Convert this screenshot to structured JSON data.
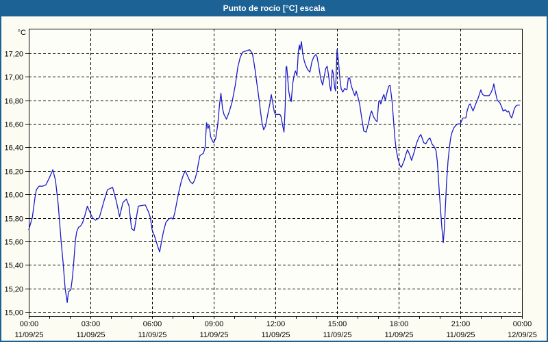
{
  "titlebar": {
    "title": "Punto de rocío [°C] escala"
  },
  "colors": {
    "titlebar_bg": "#1d6294",
    "window_border": "#1d6294",
    "background": "#fcfcf2",
    "plot_background": "#fefef8",
    "line": "#1a1aca",
    "grid": "#000000",
    "text": "#000000"
  },
  "chart_data": {
    "type": "line",
    "title": "Punto de rocío [°C] escala",
    "y_unit_label": "°C",
    "grid": true,
    "ylim": [
      14.97,
      17.44
    ],
    "x_range_hours": [
      0,
      24
    ],
    "y_ticks": [
      {
        "value": 15.0,
        "label": "15,00"
      },
      {
        "value": 15.2,
        "label": "15,20"
      },
      {
        "value": 15.4,
        "label": "15,40"
      },
      {
        "value": 15.6,
        "label": "15,60"
      },
      {
        "value": 15.8,
        "label": "15,80"
      },
      {
        "value": 16.0,
        "label": "16,00"
      },
      {
        "value": 16.2,
        "label": "16,20"
      },
      {
        "value": 16.4,
        "label": "16,40"
      },
      {
        "value": 16.6,
        "label": "16,60"
      },
      {
        "value": 16.8,
        "label": "16,80"
      },
      {
        "value": 17.0,
        "label": "17,00"
      },
      {
        "value": 17.2,
        "label": "17,20"
      }
    ],
    "x_ticks": [
      {
        "hour": 0,
        "time": "00:00",
        "date": "11/09/25"
      },
      {
        "hour": 3,
        "time": "03:00",
        "date": "11/09/25"
      },
      {
        "hour": 6,
        "time": "06:00",
        "date": "11/09/25"
      },
      {
        "hour": 9,
        "time": "09:00",
        "date": "11/09/25"
      },
      {
        "hour": 12,
        "time": "12:00",
        "date": "11/09/25"
      },
      {
        "hour": 15,
        "time": "15:00",
        "date": "11/09/25"
      },
      {
        "hour": 18,
        "time": "18:00",
        "date": "11/09/25"
      },
      {
        "hour": 21,
        "time": "21:00",
        "date": "11/09/25"
      },
      {
        "hour": 24,
        "time": "00:00",
        "date": "12/09/25"
      }
    ],
    "minor_x_tick_every_hours": 1,
    "series": [
      {
        "name": "Punto de rocío",
        "color": "#1a1aca",
        "points_hour_value": [
          [
            0,
            15.7
          ],
          [
            0.17,
            15.8
          ],
          [
            0.3,
            15.97
          ],
          [
            0.37,
            16.04
          ],
          [
            0.5,
            16.07
          ],
          [
            0.67,
            16.07
          ],
          [
            0.83,
            16.08
          ],
          [
            1.0,
            16.14
          ],
          [
            1.17,
            16.21
          ],
          [
            1.3,
            16.12
          ],
          [
            1.43,
            15.92
          ],
          [
            1.57,
            15.61
          ],
          [
            1.67,
            15.42
          ],
          [
            1.77,
            15.2
          ],
          [
            1.87,
            15.08
          ],
          [
            1.93,
            15.17
          ],
          [
            2.05,
            15.19
          ],
          [
            2.13,
            15.3
          ],
          [
            2.2,
            15.45
          ],
          [
            2.27,
            15.61
          ],
          [
            2.33,
            15.68
          ],
          [
            2.42,
            15.72
          ],
          [
            2.52,
            15.73
          ],
          [
            2.62,
            15.76
          ],
          [
            2.73,
            15.82
          ],
          [
            2.85,
            15.9
          ],
          [
            3.0,
            15.84
          ],
          [
            3.1,
            15.8
          ],
          [
            3.25,
            15.78
          ],
          [
            3.43,
            15.8
          ],
          [
            3.67,
            15.95
          ],
          [
            3.83,
            16.04
          ],
          [
            4.08,
            16.06
          ],
          [
            4.25,
            15.95
          ],
          [
            4.42,
            15.81
          ],
          [
            4.58,
            15.93
          ],
          [
            4.75,
            15.96
          ],
          [
            4.88,
            15.9
          ],
          [
            5.0,
            15.71
          ],
          [
            5.13,
            15.69
          ],
          [
            5.33,
            15.9
          ],
          [
            5.67,
            15.91
          ],
          [
            5.83,
            15.85
          ],
          [
            5.92,
            15.8
          ],
          [
            6.0,
            15.7
          ],
          [
            6.13,
            15.64
          ],
          [
            6.27,
            15.56
          ],
          [
            6.37,
            15.51
          ],
          [
            6.45,
            15.59
          ],
          [
            6.55,
            15.68
          ],
          [
            6.67,
            15.76
          ],
          [
            6.8,
            15.79
          ],
          [
            6.93,
            15.8
          ],
          [
            7.02,
            15.79
          ],
          [
            7.1,
            15.84
          ],
          [
            7.2,
            15.93
          ],
          [
            7.3,
            16.02
          ],
          [
            7.42,
            16.11
          ],
          [
            7.53,
            16.17
          ],
          [
            7.62,
            16.2
          ],
          [
            7.72,
            16.16
          ],
          [
            7.85,
            16.11
          ],
          [
            7.97,
            16.09
          ],
          [
            8.07,
            16.12
          ],
          [
            8.17,
            16.18
          ],
          [
            8.25,
            16.26
          ],
          [
            8.33,
            16.33
          ],
          [
            8.5,
            16.35
          ],
          [
            8.58,
            16.4
          ],
          [
            8.65,
            16.61
          ],
          [
            8.72,
            16.56
          ],
          [
            8.78,
            16.59
          ],
          [
            8.85,
            16.49
          ],
          [
            8.95,
            16.45
          ],
          [
            9.0,
            16.44
          ],
          [
            9.1,
            16.48
          ],
          [
            9.2,
            16.6
          ],
          [
            9.28,
            16.76
          ],
          [
            9.35,
            16.86
          ],
          [
            9.43,
            16.73
          ],
          [
            9.5,
            16.68
          ],
          [
            9.62,
            16.64
          ],
          [
            9.75,
            16.7
          ],
          [
            9.9,
            16.79
          ],
          [
            10.05,
            16.93
          ],
          [
            10.17,
            17.08
          ],
          [
            10.28,
            17.16
          ],
          [
            10.4,
            17.21
          ],
          [
            10.55,
            17.22
          ],
          [
            10.75,
            17.23
          ],
          [
            10.88,
            17.2
          ],
          [
            10.95,
            17.13
          ],
          [
            11.02,
            17.05
          ],
          [
            11.08,
            16.97
          ],
          [
            11.15,
            16.88
          ],
          [
            11.22,
            16.79
          ],
          [
            11.28,
            16.7
          ],
          [
            11.35,
            16.61
          ],
          [
            11.43,
            16.55
          ],
          [
            11.52,
            16.58
          ],
          [
            11.65,
            16.7
          ],
          [
            11.73,
            16.77
          ],
          [
            11.8,
            16.85
          ],
          [
            11.88,
            16.77
          ],
          [
            11.95,
            16.7
          ],
          [
            12.0,
            16.68
          ],
          [
            12.22,
            16.68
          ],
          [
            12.28,
            16.66
          ],
          [
            12.35,
            16.59
          ],
          [
            12.42,
            16.53
          ],
          [
            12.48,
            16.75
          ],
          [
            12.52,
            17.08
          ],
          [
            12.55,
            17.09
          ],
          [
            12.6,
            16.99
          ],
          [
            12.65,
            16.88
          ],
          [
            12.72,
            16.81
          ],
          [
            12.77,
            16.79
          ],
          [
            12.85,
            16.95
          ],
          [
            12.93,
            17.03
          ],
          [
            12.98,
            17.05
          ],
          [
            13.05,
            17.01
          ],
          [
            13.12,
            17.22
          ],
          [
            13.17,
            17.27
          ],
          [
            13.2,
            17.23
          ],
          [
            13.27,
            17.3
          ],
          [
            13.33,
            17.2
          ],
          [
            13.4,
            17.14
          ],
          [
            13.47,
            17.1
          ],
          [
            13.58,
            17.06
          ],
          [
            13.68,
            17.04
          ],
          [
            13.78,
            17.13
          ],
          [
            13.87,
            17.17
          ],
          [
            13.97,
            17.19
          ],
          [
            14.03,
            17.17
          ],
          [
            14.13,
            17.07
          ],
          [
            14.2,
            16.99
          ],
          [
            14.3,
            16.93
          ],
          [
            14.45,
            17.07
          ],
          [
            14.52,
            17.09
          ],
          [
            14.6,
            17.0
          ],
          [
            14.65,
            16.92
          ],
          [
            14.7,
            16.88
          ],
          [
            14.77,
            17.06
          ],
          [
            14.82,
            17.03
          ],
          [
            14.88,
            16.91
          ],
          [
            14.93,
            16.88
          ],
          [
            15.0,
            17.23
          ],
          [
            15.07,
            17.14
          ],
          [
            15.13,
            17.0
          ],
          [
            15.2,
            16.9
          ],
          [
            15.28,
            16.87
          ],
          [
            15.37,
            16.9
          ],
          [
            15.48,
            16.89
          ],
          [
            15.55,
            16.99
          ],
          [
            15.62,
            16.99
          ],
          [
            15.7,
            16.92
          ],
          [
            15.8,
            16.87
          ],
          [
            15.87,
            16.84
          ],
          [
            15.93,
            16.88
          ],
          [
            16.03,
            16.82
          ],
          [
            16.1,
            16.77
          ],
          [
            16.15,
            16.71
          ],
          [
            16.22,
            16.63
          ],
          [
            16.3,
            16.54
          ],
          [
            16.42,
            16.53
          ],
          [
            16.55,
            16.62
          ],
          [
            16.62,
            16.68
          ],
          [
            16.68,
            16.71
          ],
          [
            16.78,
            16.66
          ],
          [
            16.88,
            16.63
          ],
          [
            16.95,
            16.62
          ],
          [
            17.03,
            16.79
          ],
          [
            17.08,
            16.8
          ],
          [
            17.13,
            16.77
          ],
          [
            17.23,
            16.83
          ],
          [
            17.28,
            16.85
          ],
          [
            17.35,
            16.8
          ],
          [
            17.45,
            16.88
          ],
          [
            17.52,
            16.92
          ],
          [
            17.58,
            16.93
          ],
          [
            17.68,
            16.79
          ],
          [
            17.75,
            16.63
          ],
          [
            17.82,
            16.47
          ],
          [
            17.88,
            16.38
          ],
          [
            17.97,
            16.3
          ],
          [
            18.05,
            16.25
          ],
          [
            18.13,
            16.23
          ],
          [
            18.27,
            16.29
          ],
          [
            18.35,
            16.34
          ],
          [
            18.43,
            16.38
          ],
          [
            18.53,
            16.34
          ],
          [
            18.63,
            16.29
          ],
          [
            18.77,
            16.37
          ],
          [
            18.88,
            16.44
          ],
          [
            19.0,
            16.49
          ],
          [
            19.08,
            16.51
          ],
          [
            19.22,
            16.44
          ],
          [
            19.32,
            16.43
          ],
          [
            19.45,
            16.47
          ],
          [
            19.52,
            16.48
          ],
          [
            19.62,
            16.43
          ],
          [
            19.75,
            16.4
          ],
          [
            19.82,
            16.37
          ],
          [
            19.88,
            16.28
          ],
          [
            19.93,
            16.15
          ],
          [
            19.98,
            16.01
          ],
          [
            20.05,
            15.84
          ],
          [
            20.1,
            15.72
          ],
          [
            20.17,
            15.59
          ],
          [
            20.22,
            15.7
          ],
          [
            20.27,
            15.88
          ],
          [
            20.33,
            16.1
          ],
          [
            20.4,
            16.28
          ],
          [
            20.47,
            16.4
          ],
          [
            20.53,
            16.48
          ],
          [
            20.6,
            16.53
          ],
          [
            20.7,
            16.57
          ],
          [
            20.8,
            16.59
          ],
          [
            20.88,
            16.6
          ],
          [
            21.0,
            16.6
          ],
          [
            21.07,
            16.63
          ],
          [
            21.13,
            16.65
          ],
          [
            21.27,
            16.65
          ],
          [
            21.33,
            16.71
          ],
          [
            21.42,
            16.76
          ],
          [
            21.48,
            16.77
          ],
          [
            21.57,
            16.73
          ],
          [
            21.62,
            16.71
          ],
          [
            21.75,
            16.77
          ],
          [
            21.85,
            16.81
          ],
          [
            22.0,
            16.89
          ],
          [
            22.08,
            16.85
          ],
          [
            22.18,
            16.84
          ],
          [
            22.4,
            16.84
          ],
          [
            22.48,
            16.86
          ],
          [
            22.58,
            16.9
          ],
          [
            22.63,
            16.94
          ],
          [
            22.72,
            16.86
          ],
          [
            22.8,
            16.8
          ],
          [
            22.92,
            16.78
          ],
          [
            23.0,
            16.75
          ],
          [
            23.08,
            16.71
          ],
          [
            23.2,
            16.72
          ],
          [
            23.28,
            16.7
          ],
          [
            23.35,
            16.71
          ],
          [
            23.43,
            16.67
          ],
          [
            23.5,
            16.65
          ],
          [
            23.57,
            16.69
          ],
          [
            23.63,
            16.73
          ],
          [
            23.7,
            16.75
          ],
          [
            23.78,
            16.76
          ],
          [
            23.88,
            16.76
          ]
        ]
      }
    ]
  }
}
